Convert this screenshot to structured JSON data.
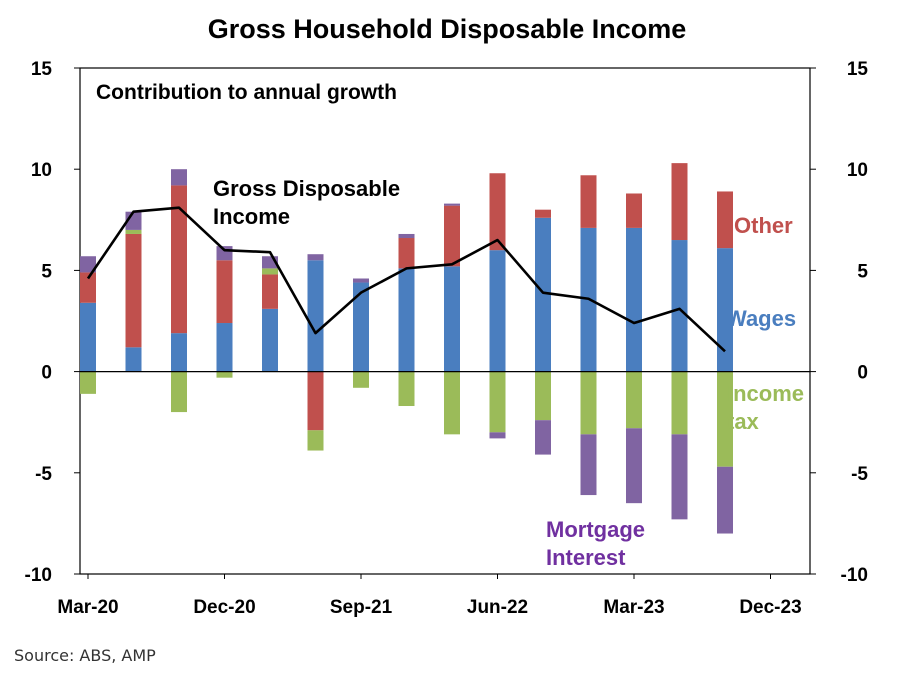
{
  "title": "Gross Household Disposable Income",
  "source": "Source: ABS, AMP",
  "chart_data": {
    "type": "bar",
    "subtitle": "Contribution to annual growth",
    "stacked": true,
    "ylim": [
      -10,
      15
    ],
    "yticks": [
      -10,
      -5,
      0,
      5,
      10,
      15
    ],
    "xtick_labels": [
      "Mar-20",
      "Dec-20",
      "Sep-21",
      "Jun-22",
      "Mar-23",
      "Dec-23"
    ],
    "categories": [
      "Mar-20",
      "Jun-20",
      "Sep-20",
      "Dec-20",
      "Mar-21",
      "Jun-21",
      "Sep-21",
      "Dec-21",
      "Mar-22",
      "Jun-22",
      "Sep-22",
      "Dec-22",
      "Mar-23",
      "Jun-23",
      "Sep-23"
    ],
    "series": [
      {
        "name": "Wages",
        "color": "#4a7ebf",
        "values": [
          3.4,
          1.2,
          1.9,
          2.4,
          3.1,
          5.5,
          4.4,
          5.1,
          5.2,
          6.0,
          7.6,
          7.1,
          7.1,
          6.5,
          6.1
        ]
      },
      {
        "name": "Other",
        "color": "#c0504d",
        "values": [
          1.5,
          5.6,
          7.3,
          3.1,
          1.7,
          -2.9,
          0.0,
          1.5,
          3.0,
          3.8,
          0.4,
          2.6,
          1.7,
          3.8,
          2.8
        ]
      },
      {
        "name": "Income tax",
        "color": "#9bbb59",
        "values": [
          -1.1,
          0.2,
          -2.0,
          -0.3,
          0.3,
          -1.0,
          -0.8,
          -1.7,
          -3.1,
          -3.0,
          -2.4,
          -3.1,
          -2.8,
          -3.1,
          -4.7
        ]
      },
      {
        "name": "Mortgage Interest",
        "color": "#8064a2",
        "values": [
          0.8,
          0.9,
          0.8,
          0.7,
          0.6,
          0.3,
          0.2,
          0.2,
          0.1,
          -0.3,
          -1.7,
          -3.0,
          -3.7,
          -4.2,
          -3.3
        ]
      }
    ],
    "line": {
      "name": "Gross Disposable Income",
      "color": "#000000",
      "values": [
        4.6,
        7.9,
        8.1,
        6.0,
        5.9,
        1.9,
        3.9,
        5.1,
        5.3,
        6.5,
        3.9,
        3.6,
        2.4,
        3.1,
        1.0
      ]
    },
    "labels": {
      "gdi": [
        "Gross Disposable",
        "Income"
      ],
      "other": "Other",
      "wages": "Wages",
      "tax": [
        "Income",
        "tax"
      ],
      "mortgage": [
        "Mortgage",
        "Interest"
      ]
    }
  }
}
